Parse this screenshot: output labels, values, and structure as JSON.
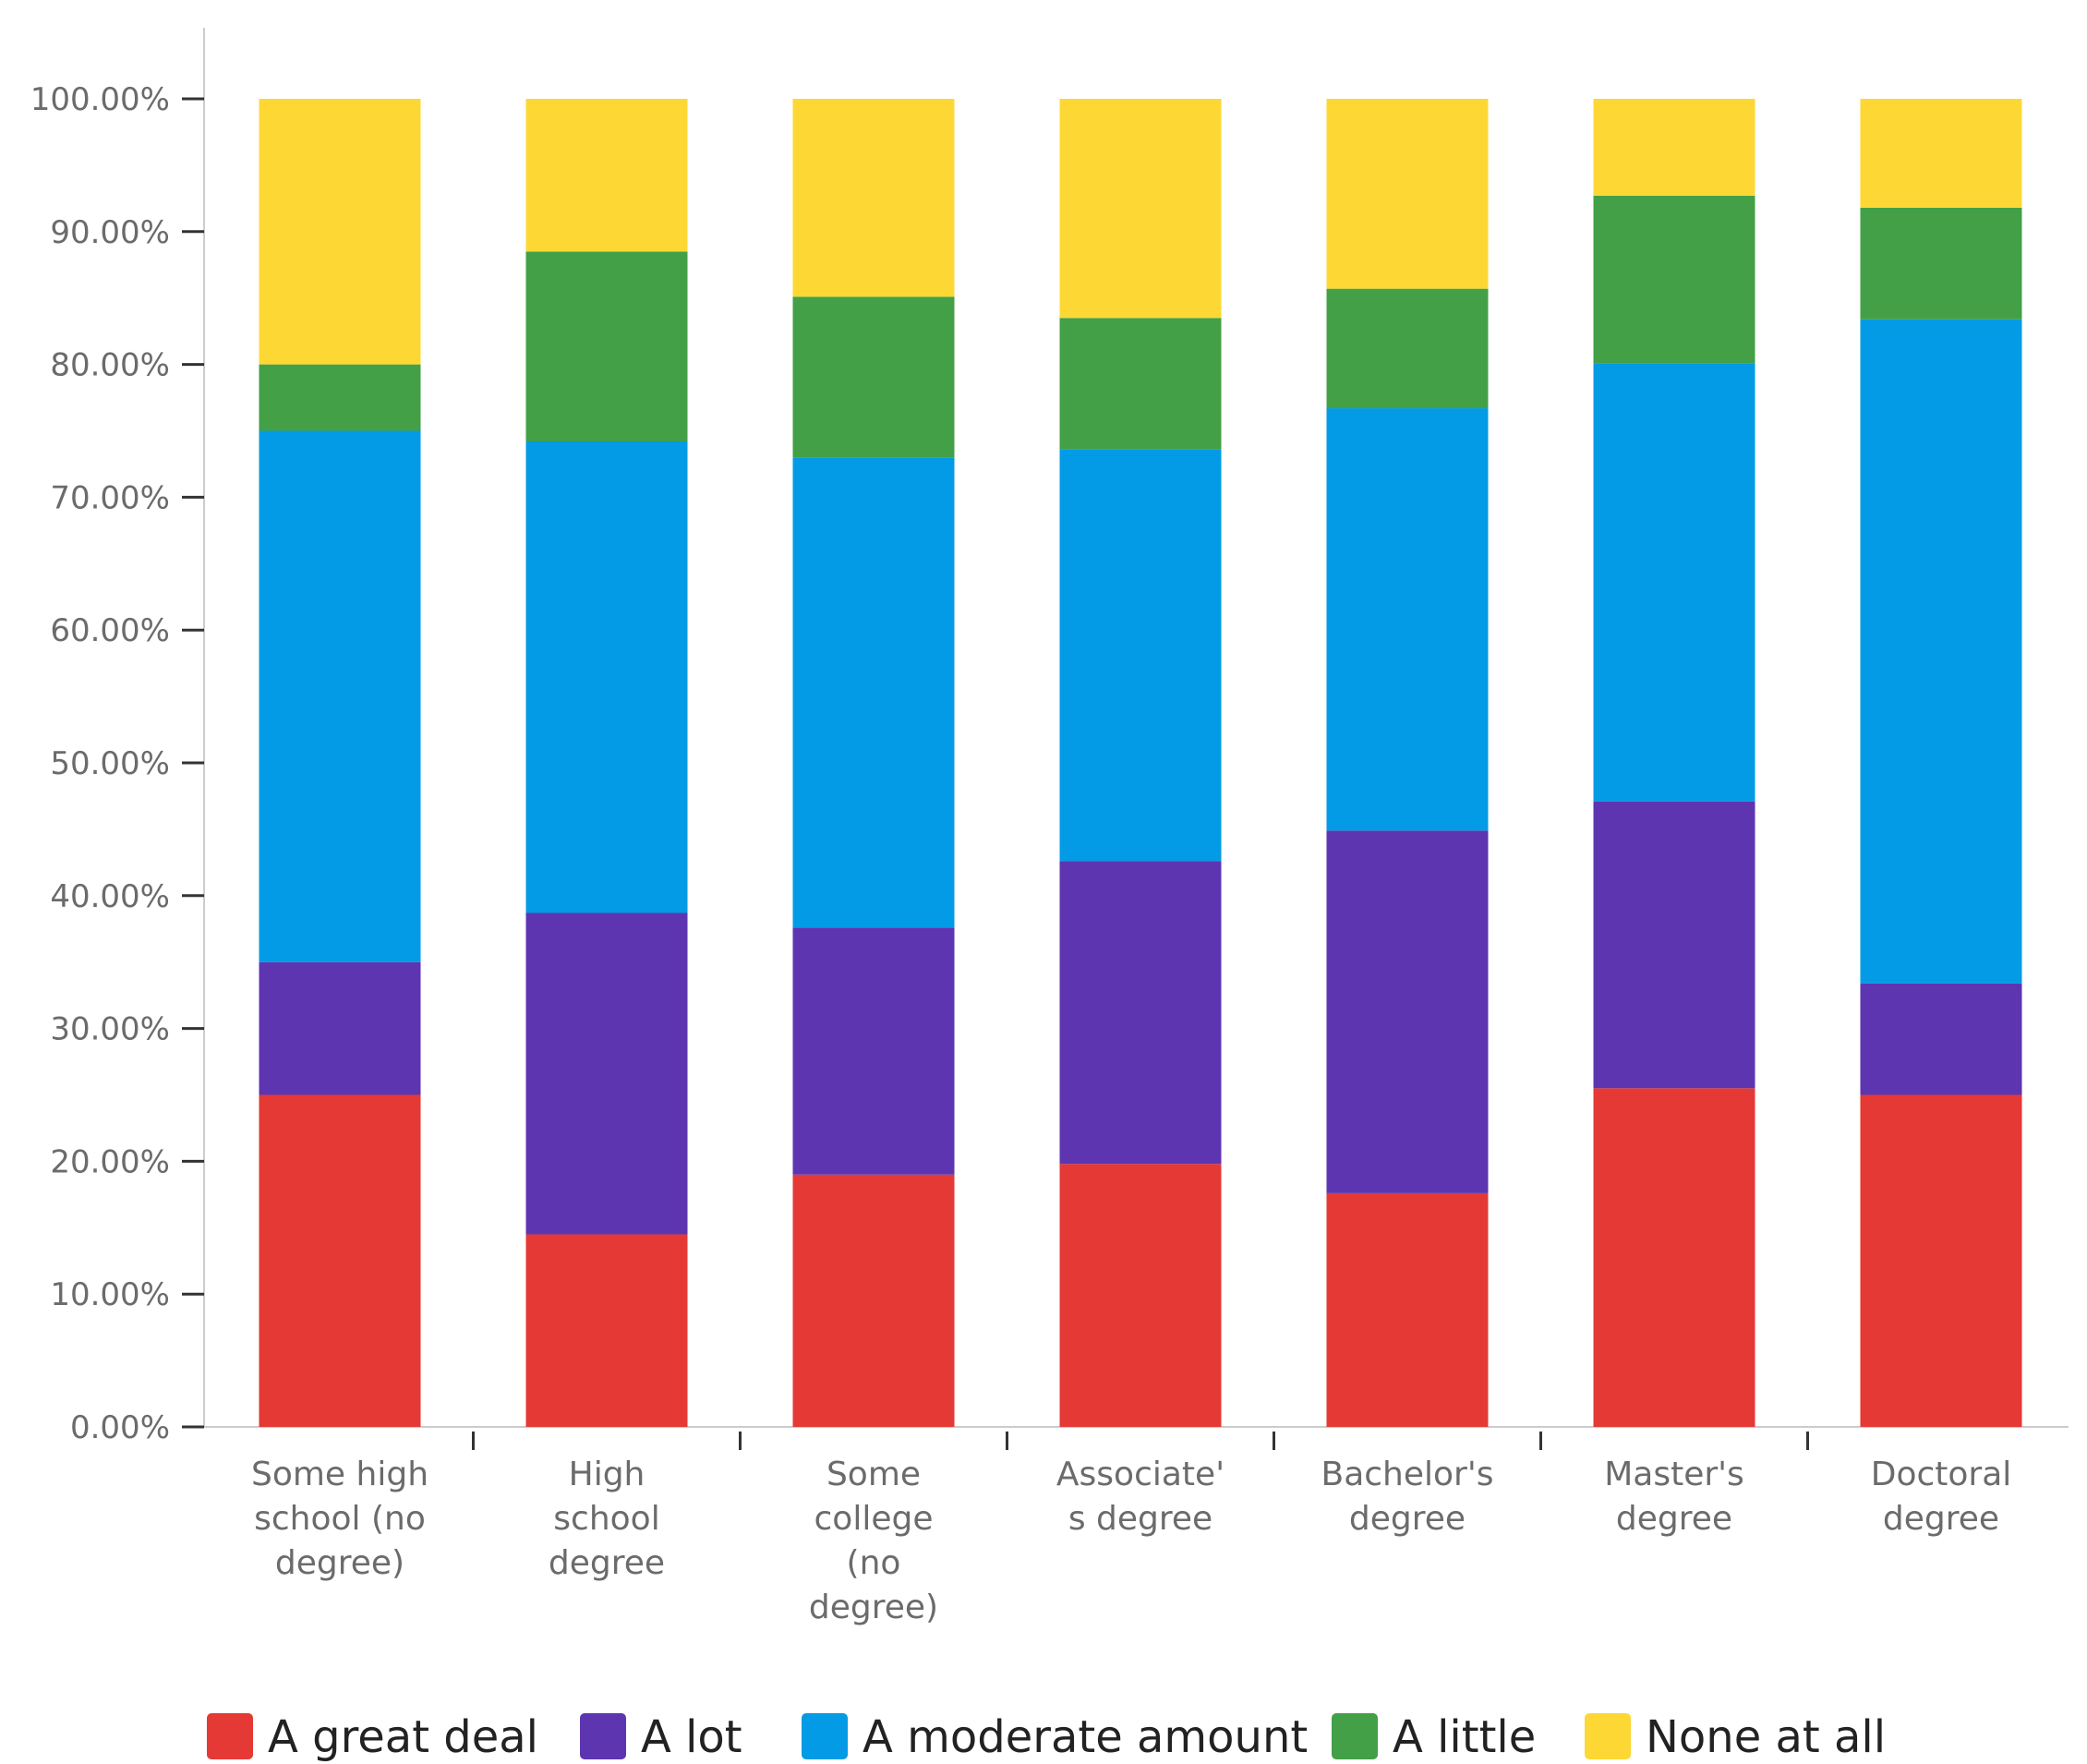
{
  "chart_data": {
    "type": "bar",
    "stacked": true,
    "title": "",
    "xlabel": "",
    "ylabel": "",
    "ylim": [
      0,
      100
    ],
    "y_ticks": [
      "0.00%",
      "10.00%",
      "20.00%",
      "30.00%",
      "40.00%",
      "50.00%",
      "60.00%",
      "70.00%",
      "80.00%",
      "90.00%",
      "100.00%"
    ],
    "categories": [
      [
        "Some high",
        "school (no",
        "degree)"
      ],
      [
        "High",
        "school",
        "degree"
      ],
      [
        "Some",
        "college",
        "(no",
        "degree)"
      ],
      [
        "Associate'",
        "s degree"
      ],
      [
        "Bachelor's",
        "degree"
      ],
      [
        "Master's",
        "degree"
      ],
      [
        "Doctoral",
        "degree"
      ]
    ],
    "series": [
      {
        "name": "A great deal",
        "color": "#e53935",
        "values": [
          25.0,
          14.5,
          19.0,
          19.8,
          17.6,
          25.5,
          25.0
        ]
      },
      {
        "name": "A lot",
        "color": "#5e35b1",
        "values": [
          10.0,
          24.2,
          18.6,
          22.8,
          27.3,
          21.6,
          8.4
        ]
      },
      {
        "name": "A moderate amount",
        "color": "#039be5",
        "values": [
          40.0,
          35.5,
          35.4,
          31.0,
          31.8,
          33.0,
          50.0
        ]
      },
      {
        "name": "A little",
        "color": "#43a047",
        "values": [
          5.0,
          14.3,
          12.1,
          9.9,
          9.0,
          12.6,
          8.4
        ]
      },
      {
        "name": "None at all",
        "color": "#fdd835",
        "values": [
          20.0,
          11.5,
          14.9,
          16.5,
          14.3,
          7.3,
          8.2
        ]
      }
    ],
    "legend_position": "bottom"
  }
}
